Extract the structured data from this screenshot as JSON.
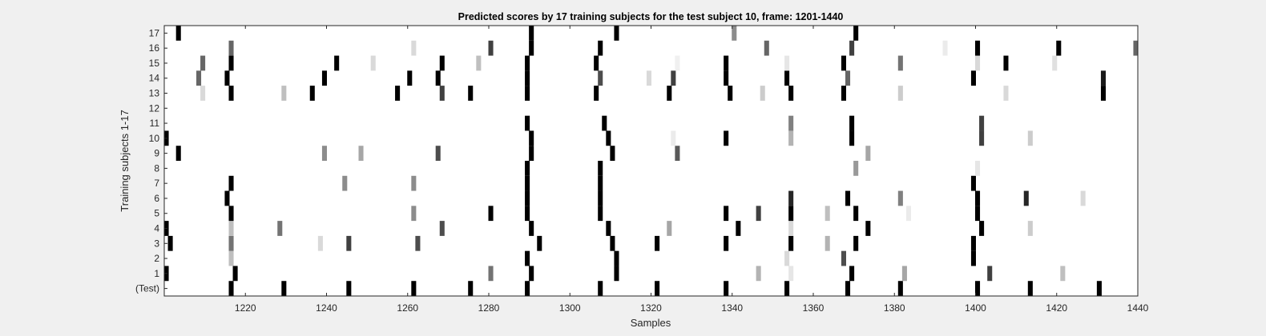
{
  "chart_data": {
    "type": "heatmap",
    "title": "Predicted scores by 17 training subjects for the test subject 10, frame: 1201-1440",
    "xlabel": "Samples",
    "ylabel": "Training subjects 1-17",
    "xlim": [
      1201,
      1440
    ],
    "x_ticks": [
      1220,
      1240,
      1260,
      1280,
      1300,
      1320,
      1340,
      1360,
      1380,
      1400,
      1420,
      1440
    ],
    "row_labels": [
      "(Test)",
      "1",
      "2",
      "3",
      "4",
      "5",
      "6",
      "7",
      "8",
      "9",
      "10",
      "11",
      "12",
      "13",
      "14",
      "15",
      "16",
      "17"
    ],
    "colormap": "gray (white = 0, black = 1)",
    "marks": [
      {
        "row": "(Test)",
        "x": 1217,
        "v": 1
      },
      {
        "row": "(Test)",
        "x": 1230,
        "v": 1
      },
      {
        "row": "(Test)",
        "x": 1246,
        "v": 1
      },
      {
        "row": "(Test)",
        "x": 1262,
        "v": 1
      },
      {
        "row": "(Test)",
        "x": 1276,
        "v": 1
      },
      {
        "row": "(Test)",
        "x": 1290,
        "v": 1
      },
      {
        "row": "(Test)",
        "x": 1308,
        "v": 1
      },
      {
        "row": "(Test)",
        "x": 1322,
        "v": 1
      },
      {
        "row": "(Test)",
        "x": 1339,
        "v": 1
      },
      {
        "row": "(Test)",
        "x": 1354,
        "v": 1
      },
      {
        "row": "(Test)",
        "x": 1369,
        "v": 1
      },
      {
        "row": "(Test)",
        "x": 1382,
        "v": 1
      },
      {
        "row": "(Test)",
        "x": 1401,
        "v": 1
      },
      {
        "row": "(Test)",
        "x": 1414,
        "v": 1
      },
      {
        "row": "(Test)",
        "x": 1431,
        "v": 1
      },
      {
        "row": "1",
        "x": 1201,
        "v": 1
      },
      {
        "row": "1",
        "x": 1218,
        "v": 1
      },
      {
        "row": "1",
        "x": 1281,
        "v": 0.55
      },
      {
        "row": "1",
        "x": 1291,
        "v": 1
      },
      {
        "row": "1",
        "x": 1312,
        "v": 1
      },
      {
        "row": "1",
        "x": 1347,
        "v": 0.3
      },
      {
        "row": "1",
        "x": 1355,
        "v": 0.1
      },
      {
        "row": "1",
        "x": 1370,
        "v": 1
      },
      {
        "row": "1",
        "x": 1383,
        "v": 0.35
      },
      {
        "row": "1",
        "x": 1404,
        "v": 0.75
      },
      {
        "row": "1",
        "x": 1422,
        "v": 0.25
      },
      {
        "row": "2",
        "x": 1217,
        "v": 0.25
      },
      {
        "row": "2",
        "x": 1290,
        "v": 1
      },
      {
        "row": "2",
        "x": 1312,
        "v": 1
      },
      {
        "row": "2",
        "x": 1354,
        "v": 0.15
      },
      {
        "row": "2",
        "x": 1368,
        "v": 0.7
      },
      {
        "row": "2",
        "x": 1400,
        "v": 1
      },
      {
        "row": "3",
        "x": 1202,
        "v": 1
      },
      {
        "row": "3",
        "x": 1217,
        "v": 0.55
      },
      {
        "row": "3",
        "x": 1239,
        "v": 0.15
      },
      {
        "row": "3",
        "x": 1246,
        "v": 0.75
      },
      {
        "row": "3",
        "x": 1263,
        "v": 0.7
      },
      {
        "row": "3",
        "x": 1293,
        "v": 1
      },
      {
        "row": "3",
        "x": 1311,
        "v": 1
      },
      {
        "row": "3",
        "x": 1322,
        "v": 1
      },
      {
        "row": "3",
        "x": 1339,
        "v": 1
      },
      {
        "row": "3",
        "x": 1355,
        "v": 1
      },
      {
        "row": "3",
        "x": 1364,
        "v": 0.3
      },
      {
        "row": "3",
        "x": 1371,
        "v": 1
      },
      {
        "row": "3",
        "x": 1400,
        "v": 1
      },
      {
        "row": "4",
        "x": 1201,
        "v": 1
      },
      {
        "row": "4",
        "x": 1217,
        "v": 0.25
      },
      {
        "row": "4",
        "x": 1229,
        "v": 0.55
      },
      {
        "row": "4",
        "x": 1269,
        "v": 0.7
      },
      {
        "row": "4",
        "x": 1291,
        "v": 1
      },
      {
        "row": "4",
        "x": 1310,
        "v": 1
      },
      {
        "row": "4",
        "x": 1325,
        "v": 0.35
      },
      {
        "row": "4",
        "x": 1342,
        "v": 1
      },
      {
        "row": "4",
        "x": 1355,
        "v": 0.15
      },
      {
        "row": "4",
        "x": 1374,
        "v": 1
      },
      {
        "row": "4",
        "x": 1402,
        "v": 1
      },
      {
        "row": "4",
        "x": 1414,
        "v": 0.2
      },
      {
        "row": "5",
        "x": 1217,
        "v": 1
      },
      {
        "row": "5",
        "x": 1262,
        "v": 0.45
      },
      {
        "row": "5",
        "x": 1281,
        "v": 1
      },
      {
        "row": "5",
        "x": 1290,
        "v": 1
      },
      {
        "row": "5",
        "x": 1308,
        "v": 1
      },
      {
        "row": "5",
        "x": 1339,
        "v": 1
      },
      {
        "row": "5",
        "x": 1347,
        "v": 0.75
      },
      {
        "row": "5",
        "x": 1355,
        "v": 1
      },
      {
        "row": "5",
        "x": 1364,
        "v": 0.25
      },
      {
        "row": "5",
        "x": 1371,
        "v": 1
      },
      {
        "row": "5",
        "x": 1384,
        "v": 0.08
      },
      {
        "row": "5",
        "x": 1401,
        "v": 1
      },
      {
        "row": "6",
        "x": 1216,
        "v": 1
      },
      {
        "row": "6",
        "x": 1290,
        "v": 1
      },
      {
        "row": "6",
        "x": 1308,
        "v": 1
      },
      {
        "row": "6",
        "x": 1355,
        "v": 0.85
      },
      {
        "row": "6",
        "x": 1369,
        "v": 1
      },
      {
        "row": "6",
        "x": 1382,
        "v": 0.5
      },
      {
        "row": "6",
        "x": 1401,
        "v": 1
      },
      {
        "row": "6",
        "x": 1413,
        "v": 0.85
      },
      {
        "row": "6",
        "x": 1427,
        "v": 0.15
      },
      {
        "row": "7",
        "x": 1217,
        "v": 1
      },
      {
        "row": "7",
        "x": 1245,
        "v": 0.45
      },
      {
        "row": "7",
        "x": 1262,
        "v": 0.45
      },
      {
        "row": "7",
        "x": 1290,
        "v": 1
      },
      {
        "row": "7",
        "x": 1308,
        "v": 1
      },
      {
        "row": "7",
        "x": 1400,
        "v": 1
      },
      {
        "row": "8",
        "x": 1290,
        "v": 1
      },
      {
        "row": "8",
        "x": 1308,
        "v": 1
      },
      {
        "row": "8",
        "x": 1371,
        "v": 0.4
      },
      {
        "row": "8",
        "x": 1401,
        "v": 0.1
      },
      {
        "row": "9",
        "x": 1204,
        "v": 1
      },
      {
        "row": "9",
        "x": 1240,
        "v": 0.45
      },
      {
        "row": "9",
        "x": 1249,
        "v": 0.35
      },
      {
        "row": "9",
        "x": 1268,
        "v": 0.7
      },
      {
        "row": "9",
        "x": 1291,
        "v": 1
      },
      {
        "row": "9",
        "x": 1311,
        "v": 1
      },
      {
        "row": "9",
        "x": 1327,
        "v": 0.65
      },
      {
        "row": "9",
        "x": 1374,
        "v": 0.35
      },
      {
        "row": "10",
        "x": 1201,
        "v": 1
      },
      {
        "row": "10",
        "x": 1291,
        "v": 1
      },
      {
        "row": "10",
        "x": 1310,
        "v": 1
      },
      {
        "row": "10",
        "x": 1326,
        "v": 0.08
      },
      {
        "row": "10",
        "x": 1339,
        "v": 1
      },
      {
        "row": "10",
        "x": 1355,
        "v": 0.3
      },
      {
        "row": "10",
        "x": 1370,
        "v": 1
      },
      {
        "row": "10",
        "x": 1402,
        "v": 0.75
      },
      {
        "row": "10",
        "x": 1414,
        "v": 0.2
      },
      {
        "row": "11",
        "x": 1290,
        "v": 1
      },
      {
        "row": "11",
        "x": 1309,
        "v": 1
      },
      {
        "row": "11",
        "x": 1355,
        "v": 0.5
      },
      {
        "row": "11",
        "x": 1370,
        "v": 1
      },
      {
        "row": "11",
        "x": 1402,
        "v": 0.75
      },
      {
        "row": "13",
        "x": 1210,
        "v": 0.15
      },
      {
        "row": "13",
        "x": 1217,
        "v": 1
      },
      {
        "row": "13",
        "x": 1230,
        "v": 0.25
      },
      {
        "row": "13",
        "x": 1237,
        "v": 1
      },
      {
        "row": "13",
        "x": 1258,
        "v": 1
      },
      {
        "row": "13",
        "x": 1269,
        "v": 0.75
      },
      {
        "row": "13",
        "x": 1276,
        "v": 1
      },
      {
        "row": "13",
        "x": 1290,
        "v": 1
      },
      {
        "row": "13",
        "x": 1307,
        "v": 1
      },
      {
        "row": "13",
        "x": 1325,
        "v": 1
      },
      {
        "row": "13",
        "x": 1340,
        "v": 1
      },
      {
        "row": "13",
        "x": 1348,
        "v": 0.2
      },
      {
        "row": "13",
        "x": 1355,
        "v": 1
      },
      {
        "row": "13",
        "x": 1368,
        "v": 1
      },
      {
        "row": "13",
        "x": 1382,
        "v": 0.2
      },
      {
        "row": "13",
        "x": 1408,
        "v": 0.15
      },
      {
        "row": "13",
        "x": 1432,
        "v": 1
      },
      {
        "row": "14",
        "x": 1209,
        "v": 0.6
      },
      {
        "row": "14",
        "x": 1216,
        "v": 1
      },
      {
        "row": "14",
        "x": 1240,
        "v": 1
      },
      {
        "row": "14",
        "x": 1261,
        "v": 1
      },
      {
        "row": "14",
        "x": 1268,
        "v": 1
      },
      {
        "row": "14",
        "x": 1290,
        "v": 1
      },
      {
        "row": "14",
        "x": 1308,
        "v": 0.7
      },
      {
        "row": "14",
        "x": 1320,
        "v": 0.15
      },
      {
        "row": "14",
        "x": 1326,
        "v": 0.75
      },
      {
        "row": "14",
        "x": 1339,
        "v": 1
      },
      {
        "row": "14",
        "x": 1354,
        "v": 1
      },
      {
        "row": "14",
        "x": 1369,
        "v": 0.6
      },
      {
        "row": "14",
        "x": 1400,
        "v": 1
      },
      {
        "row": "14",
        "x": 1432,
        "v": 0.9
      },
      {
        "row": "15",
        "x": 1210,
        "v": 0.6
      },
      {
        "row": "15",
        "x": 1217,
        "v": 1
      },
      {
        "row": "15",
        "x": 1243,
        "v": 1
      },
      {
        "row": "15",
        "x": 1252,
        "v": 0.15
      },
      {
        "row": "15",
        "x": 1269,
        "v": 1
      },
      {
        "row": "15",
        "x": 1278,
        "v": 0.25
      },
      {
        "row": "15",
        "x": 1290,
        "v": 1
      },
      {
        "row": "15",
        "x": 1307,
        "v": 1
      },
      {
        "row": "15",
        "x": 1327,
        "v": 0.06
      },
      {
        "row": "15",
        "x": 1339,
        "v": 1
      },
      {
        "row": "15",
        "x": 1354,
        "v": 0.1
      },
      {
        "row": "15",
        "x": 1368,
        "v": 1
      },
      {
        "row": "15",
        "x": 1382,
        "v": 0.55
      },
      {
        "row": "15",
        "x": 1401,
        "v": 0.15
      },
      {
        "row": "15",
        "x": 1408,
        "v": 1
      },
      {
        "row": "15",
        "x": 1420,
        "v": 0.12
      },
      {
        "row": "16",
        "x": 1217,
        "v": 0.6
      },
      {
        "row": "16",
        "x": 1262,
        "v": 0.15
      },
      {
        "row": "16",
        "x": 1281,
        "v": 0.75
      },
      {
        "row": "16",
        "x": 1291,
        "v": 1
      },
      {
        "row": "16",
        "x": 1308,
        "v": 1
      },
      {
        "row": "16",
        "x": 1349,
        "v": 0.6
      },
      {
        "row": "16",
        "x": 1370,
        "v": 0.75
      },
      {
        "row": "16",
        "x": 1393,
        "v": 0.08
      },
      {
        "row": "16",
        "x": 1401,
        "v": 1
      },
      {
        "row": "16",
        "x": 1421,
        "v": 1
      },
      {
        "row": "16",
        "x": 1440,
        "v": 0.6
      },
      {
        "row": "17",
        "x": 1204,
        "v": 1
      },
      {
        "row": "17",
        "x": 1291,
        "v": 1
      },
      {
        "row": "17",
        "x": 1312,
        "v": 1
      },
      {
        "row": "17",
        "x": 1341,
        "v": 0.45
      },
      {
        "row": "17",
        "x": 1371,
        "v": 1
      }
    ]
  }
}
